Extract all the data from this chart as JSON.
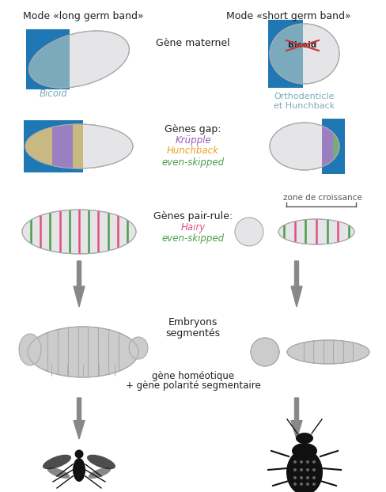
{
  "left_header": "Mode «long germ band»",
  "right_header": "Mode «short germ band»",
  "gap_genes": [
    "Krüpple",
    "Hunchback",
    "even-skipped"
  ],
  "gap_colors": [
    "#9b59b6",
    "#e8a020",
    "#4a9e4a"
  ],
  "pairrule_genes": [
    "Hairy",
    "even-skipped"
  ],
  "pairrule_colors": [
    "#e05080",
    "#4a9e4a"
  ],
  "bg_color": "#ffffff",
  "egg_blue": "#7aaabb",
  "egg_light": "#e5e5e8",
  "egg_tan": "#c8b882",
  "egg_purple": "#9b7fc0",
  "egg_green_small": "#7aaa7a",
  "stripe_red": "#e05080",
  "stripe_green": "#4a9e4a",
  "arrow_color": "#777777",
  "bicoid_cross_color": "#cc3333",
  "zone_color": "#555555",
  "header_color": "#222222",
  "seg_color": "#cccccc"
}
